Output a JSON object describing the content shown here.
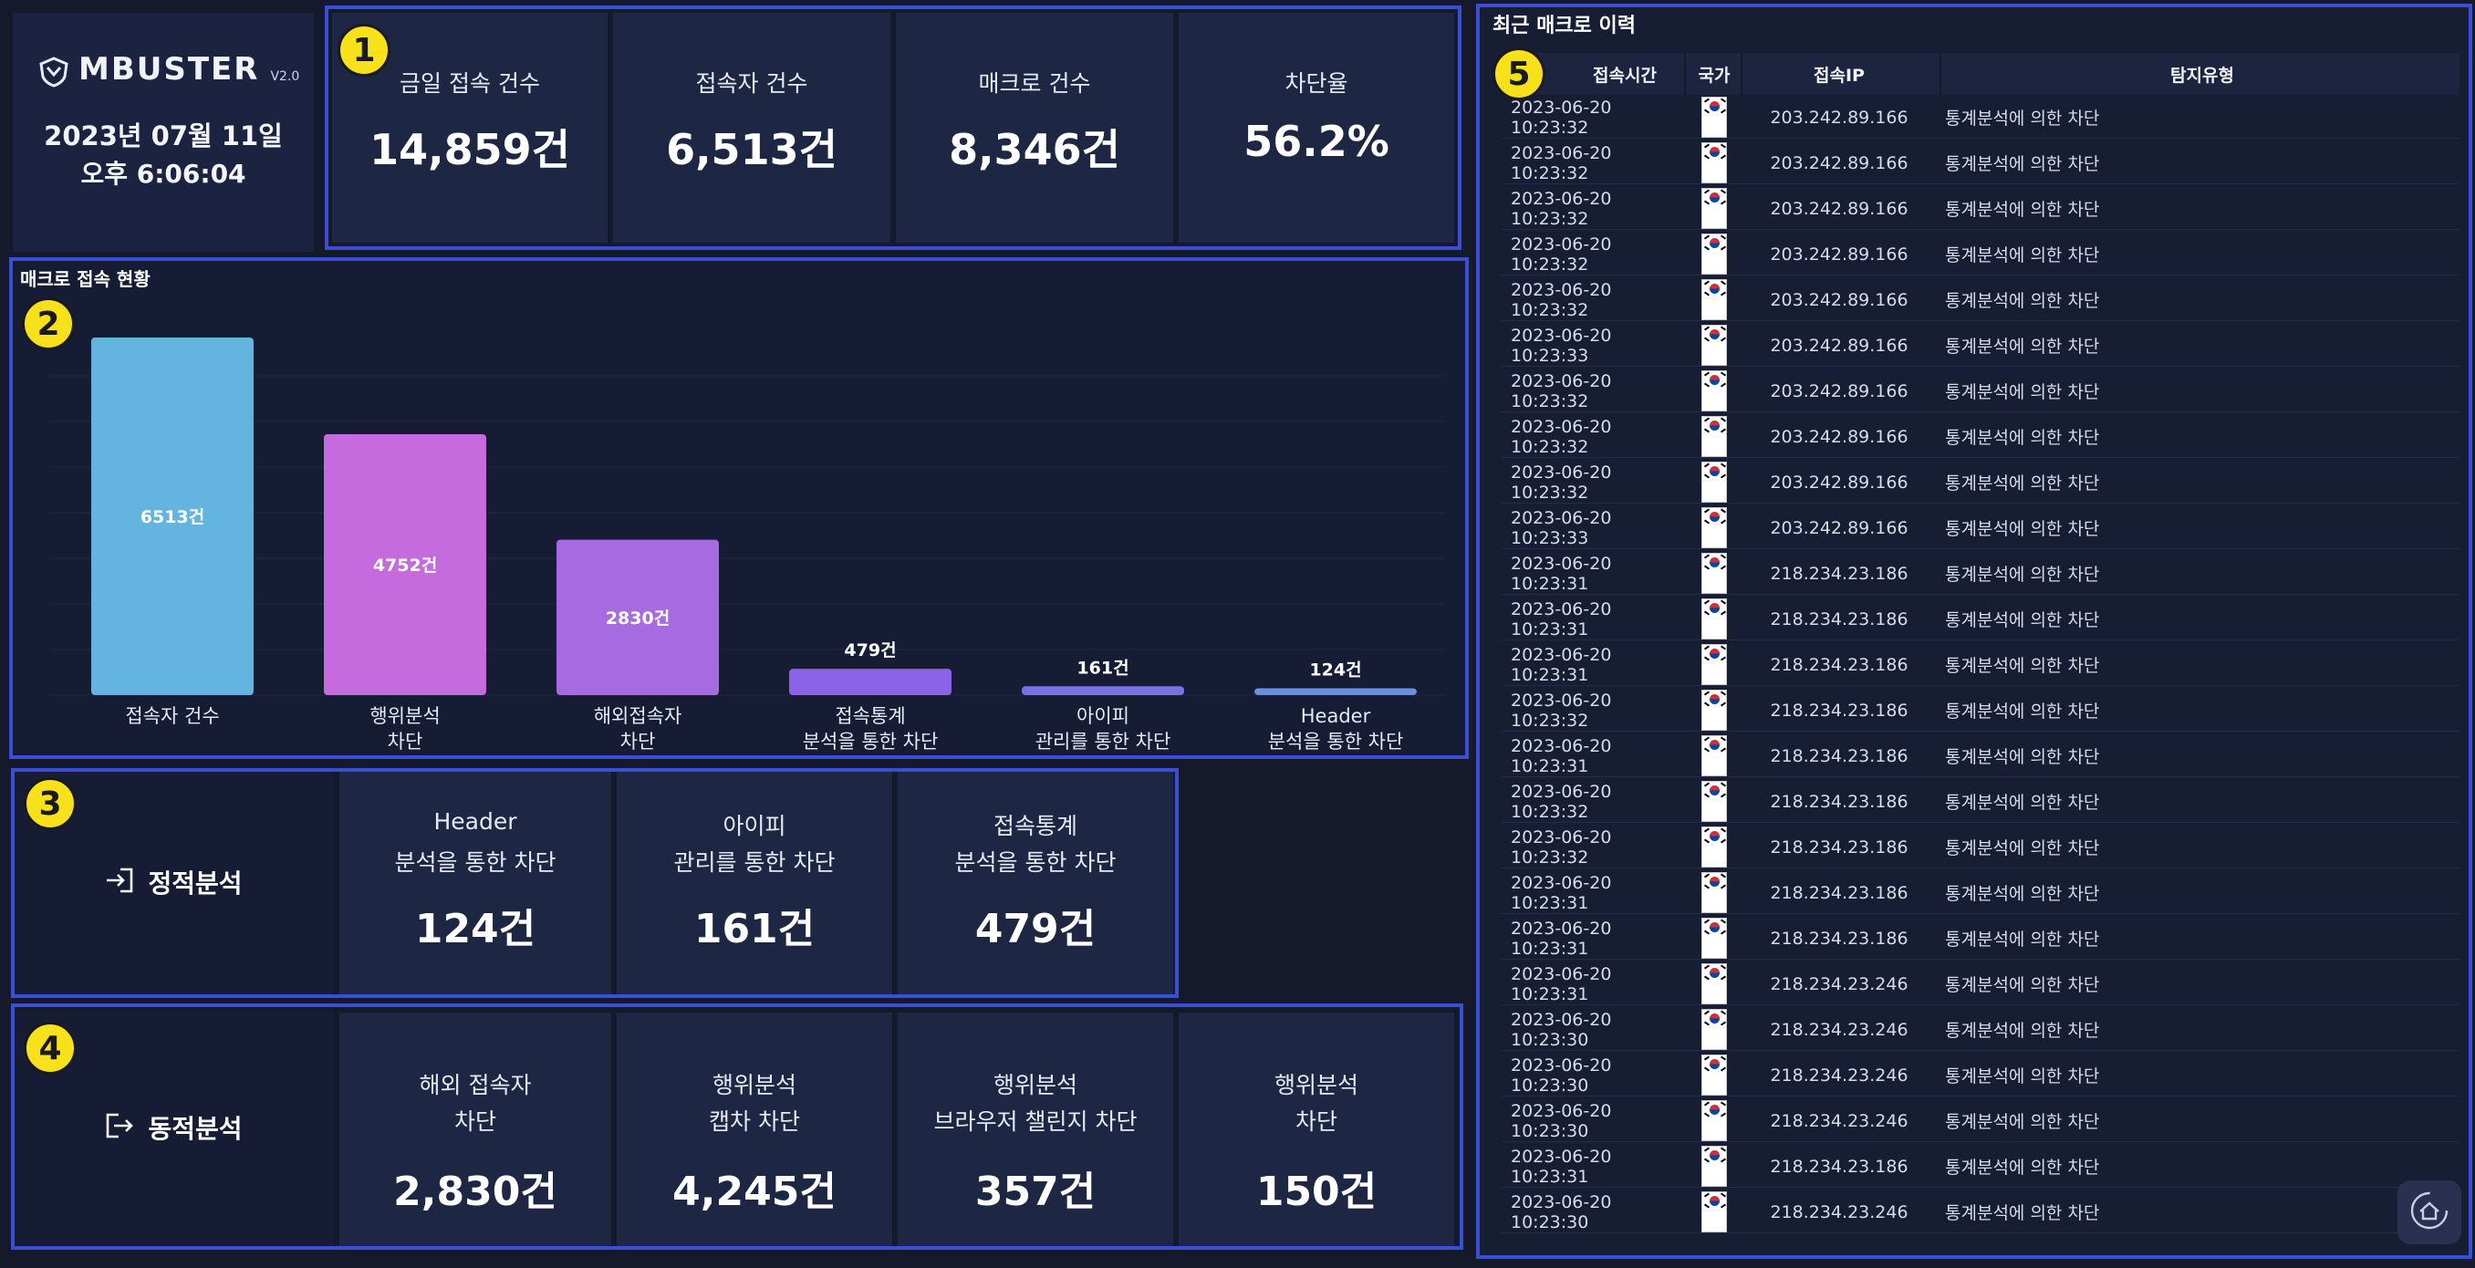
{
  "brand": {
    "name": "MBUSTER",
    "version": "V2.0",
    "date": "2023년 07월 11일",
    "time": "오후 6:06:04"
  },
  "badges": {
    "b1": "1",
    "b2": "2",
    "b3": "3",
    "b4": "4",
    "b5": "5"
  },
  "stats": [
    {
      "label": "금일 접속 건수",
      "value": "14,859건"
    },
    {
      "label": "접속자 건수",
      "value": "6,513건"
    },
    {
      "label": "매크로 건수",
      "value": "8,346건"
    },
    {
      "label": "차단율",
      "value": "56.2%"
    }
  ],
  "chart_title": "매크로 접속 현황",
  "chart_data": {
    "type": "bar",
    "title": "매크로 접속 현황",
    "categories": [
      "접속자 건수",
      "행위분석\n차단",
      "해외접속자\n차단",
      "접속통계\n분석을 통한 차단",
      "아이피\n관리를 통한 차단",
      "Header\n분석을 통한 차단"
    ],
    "values": [
      6513,
      4752,
      2830,
      479,
      161,
      124
    ],
    "data_labels": [
      "6513건",
      "4752건",
      "2830건",
      "479건",
      "161건",
      "124건"
    ],
    "colors": [
      "#63b5df",
      "#c66bde",
      "#a66be0",
      "#8c63e6",
      "#7a6fe6",
      "#6b8fe0"
    ],
    "ylim": [
      0,
      6513
    ],
    "grid": false,
    "legend": "none"
  },
  "static_analysis": {
    "label": "정적분석",
    "items": [
      {
        "line1": "Header",
        "line2": "분석을 통한 차단",
        "value": "124건"
      },
      {
        "line1": "아이피",
        "line2": "관리를 통한 차단",
        "value": "161건"
      },
      {
        "line1": "접속통계",
        "line2": "분석을 통한 차단",
        "value": "479건"
      }
    ]
  },
  "dynamic_analysis": {
    "label": "동적분석",
    "items": [
      {
        "line1": "해외 접속자",
        "line2": "차단",
        "value": "2,830건"
      },
      {
        "line1": "행위분석",
        "line2": "캡차 차단",
        "value": "4,245건"
      },
      {
        "line1": "행위분석",
        "line2": "브라우저 챌린지 차단",
        "value": "357건"
      },
      {
        "line1": "행위분석",
        "line2": "차단",
        "value": "150건"
      }
    ]
  },
  "log": {
    "title": "최근 매크로 이력",
    "headers": {
      "time": "접속시간",
      "country": "국가",
      "ip": "접속IP",
      "type": "탐지유형"
    },
    "rows": [
      {
        "time": "2023-06-20 10:23:32",
        "ip": "203.242.89.166",
        "type": "통계분석에 의한 차단"
      },
      {
        "time": "2023-06-20 10:23:32",
        "ip": "203.242.89.166",
        "type": "통계분석에 의한 차단"
      },
      {
        "time": "2023-06-20 10:23:32",
        "ip": "203.242.89.166",
        "type": "통계분석에 의한 차단"
      },
      {
        "time": "2023-06-20 10:23:32",
        "ip": "203.242.89.166",
        "type": "통계분석에 의한 차단"
      },
      {
        "time": "2023-06-20 10:23:32",
        "ip": "203.242.89.166",
        "type": "통계분석에 의한 차단"
      },
      {
        "time": "2023-06-20 10:23:33",
        "ip": "203.242.89.166",
        "type": "통계분석에 의한 차단"
      },
      {
        "time": "2023-06-20 10:23:32",
        "ip": "203.242.89.166",
        "type": "통계분석에 의한 차단"
      },
      {
        "time": "2023-06-20 10:23:32",
        "ip": "203.242.89.166",
        "type": "통계분석에 의한 차단"
      },
      {
        "time": "2023-06-20 10:23:32",
        "ip": "203.242.89.166",
        "type": "통계분석에 의한 차단"
      },
      {
        "time": "2023-06-20 10:23:33",
        "ip": "203.242.89.166",
        "type": "통계분석에 의한 차단"
      },
      {
        "time": "2023-06-20 10:23:31",
        "ip": "218.234.23.186",
        "type": "통계분석에 의한 차단"
      },
      {
        "time": "2023-06-20 10:23:31",
        "ip": "218.234.23.186",
        "type": "통계분석에 의한 차단"
      },
      {
        "time": "2023-06-20 10:23:31",
        "ip": "218.234.23.186",
        "type": "통계분석에 의한 차단"
      },
      {
        "time": "2023-06-20 10:23:32",
        "ip": "218.234.23.186",
        "type": "통계분석에 의한 차단"
      },
      {
        "time": "2023-06-20 10:23:31",
        "ip": "218.234.23.186",
        "type": "통계분석에 의한 차단"
      },
      {
        "time": "2023-06-20 10:23:32",
        "ip": "218.234.23.186",
        "type": "통계분석에 의한 차단"
      },
      {
        "time": "2023-06-20 10:23:32",
        "ip": "218.234.23.186",
        "type": "통계분석에 의한 차단"
      },
      {
        "time": "2023-06-20 10:23:31",
        "ip": "218.234.23.186",
        "type": "통계분석에 의한 차단"
      },
      {
        "time": "2023-06-20 10:23:31",
        "ip": "218.234.23.186",
        "type": "통계분석에 의한 차단"
      },
      {
        "time": "2023-06-20 10:23:31",
        "ip": "218.234.23.246",
        "type": "통계분석에 의한 차단"
      },
      {
        "time": "2023-06-20 10:23:30",
        "ip": "218.234.23.246",
        "type": "통계분석에 의한 차단"
      },
      {
        "time": "2023-06-20 10:23:30",
        "ip": "218.234.23.246",
        "type": "통계분석에 의한 차단"
      },
      {
        "time": "2023-06-20 10:23:30",
        "ip": "218.234.23.246",
        "type": "통계분석에 의한 차단"
      },
      {
        "time": "2023-06-20 10:23:31",
        "ip": "218.234.23.186",
        "type": "통계분석에 의한 차단"
      },
      {
        "time": "2023-06-20 10:23:30",
        "ip": "218.234.23.246",
        "type": "통계분석에 의한 차단"
      }
    ]
  },
  "icons": {
    "static": "login-arrow-icon",
    "dynamic": "logout-arrow-icon",
    "home": "home-refresh-icon",
    "flag": "korea-flag-icon"
  }
}
